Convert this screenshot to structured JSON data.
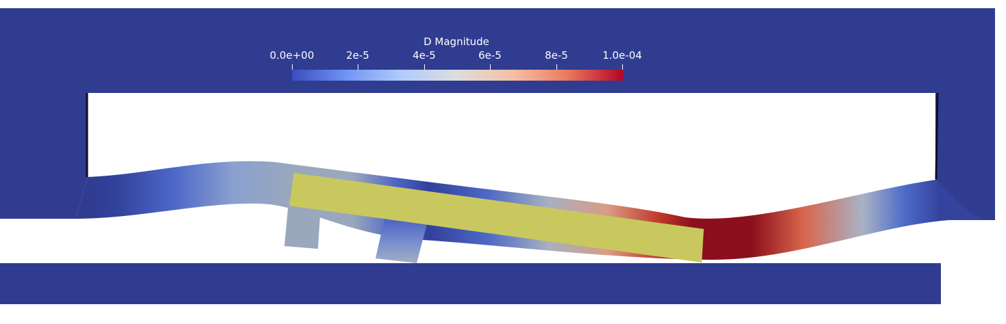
{
  "legend": {
    "title": "D Magnitude",
    "ticks": [
      "0.0e+00",
      "2e-5",
      "4e-5",
      "6e-5",
      "8e-5",
      "1.0e-04"
    ],
    "range": [
      0,
      0.0001
    ]
  },
  "colormap": {
    "name": "Cool to Warm",
    "stops": [
      "#3b4cc0",
      "#7396f5",
      "#b0cbfc",
      "#dddddd",
      "#f6bfa5",
      "#ea7b60",
      "#b40426"
    ]
  },
  "colors": {
    "background": "#ffffff",
    "static_frame": "#2f3c90",
    "rigid_body": "#c9c85f"
  }
}
